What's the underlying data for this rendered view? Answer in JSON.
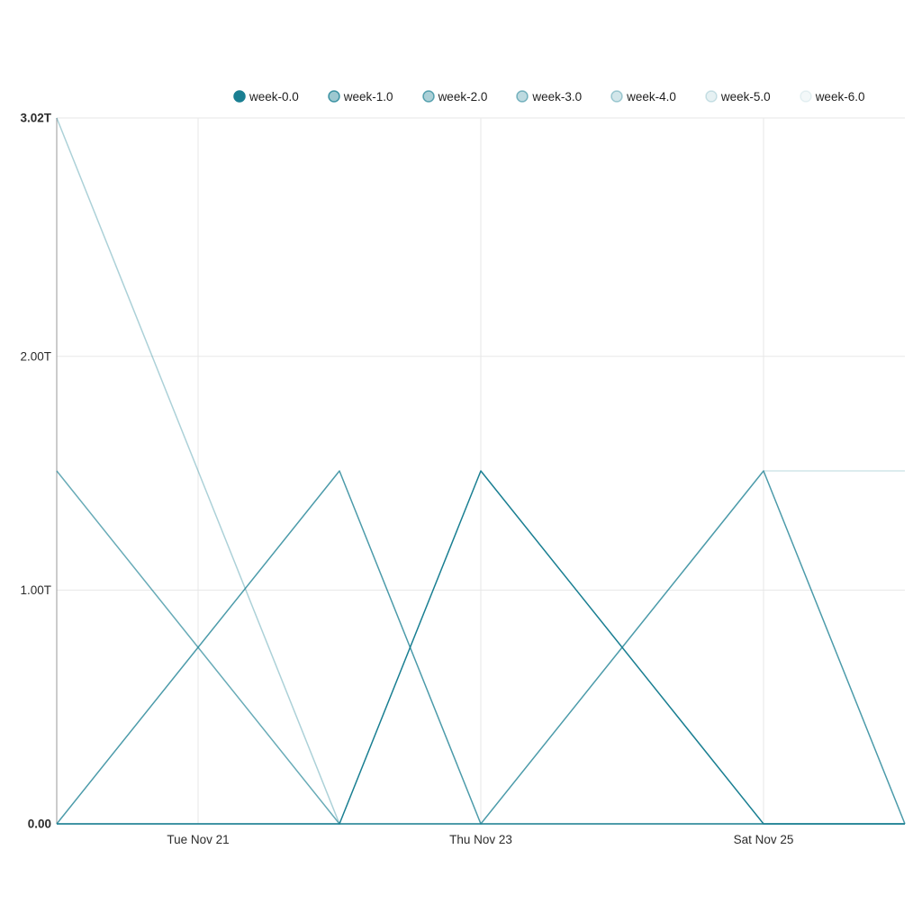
{
  "chart_style": {
    "base_color_rgb": [
      26,
      127,
      146
    ],
    "grid_color": "#E7E7E7",
    "axis_color": "#9A9A9A",
    "tick_text_color": "#2B2B2B",
    "background": "#FFFFFF"
  },
  "legend": {
    "items": [
      {
        "label": "week-0.0",
        "alpha": 1.0
      },
      {
        "label": "week-1.0",
        "alpha": 0.78
      },
      {
        "label": "week-2.0",
        "alpha": 0.66
      },
      {
        "label": "week-3.0",
        "alpha": 0.52
      },
      {
        "label": "week-4.0",
        "alpha": 0.36
      },
      {
        "label": "week-5.0",
        "alpha": 0.2
      },
      {
        "label": "week-6.0",
        "alpha": 0.09
      }
    ]
  },
  "chart_data": {
    "type": "line",
    "title": "",
    "xlabel": "",
    "ylabel": "",
    "grid": true,
    "legend_position": "top",
    "x_point_count": 7,
    "x_tick_labels": [
      {
        "index": 1,
        "label": "Tue Nov 21"
      },
      {
        "index": 3,
        "label": "Thu Nov 23"
      },
      {
        "index": 5,
        "label": "Sat Nov 25"
      }
    ],
    "y_ticks": [
      {
        "value": 0,
        "label": "0.00",
        "bold": true
      },
      {
        "value": 1,
        "label": "1.00T",
        "bold": false
      },
      {
        "value": 2,
        "label": "2.00T",
        "bold": false
      },
      {
        "value": 3.02,
        "label": "3.02T",
        "bold": true
      }
    ],
    "ylim": [
      0,
      3.02
    ],
    "value_unit": "T",
    "series": [
      {
        "name": "week-0.0",
        "alpha": 1.0,
        "values": [
          0,
          0,
          0,
          1.51,
          0.755,
          0,
          0
        ]
      },
      {
        "name": "week-1.0",
        "alpha": 0.78,
        "values": [
          0,
          0.755,
          1.51,
          0,
          0.755,
          1.51,
          0
        ]
      },
      {
        "name": "week-2.0",
        "alpha": 0.66,
        "values": [
          1.51,
          0.755,
          0,
          0,
          0,
          0,
          0
        ]
      },
      {
        "name": "week-3.0",
        "alpha": 0.52,
        "values": [
          0,
          0,
          0,
          0,
          0,
          0,
          0
        ]
      },
      {
        "name": "week-4.0",
        "alpha": 0.36,
        "values": [
          3.02,
          1.51,
          0,
          0,
          0,
          0,
          0
        ]
      },
      {
        "name": "week-5.0",
        "alpha": 0.2,
        "values": [
          null,
          null,
          null,
          null,
          null,
          1.51,
          1.51
        ]
      },
      {
        "name": "week-6.0",
        "alpha": 0.09,
        "values": [
          0,
          0,
          0,
          0,
          0,
          0,
          0
        ]
      }
    ]
  }
}
